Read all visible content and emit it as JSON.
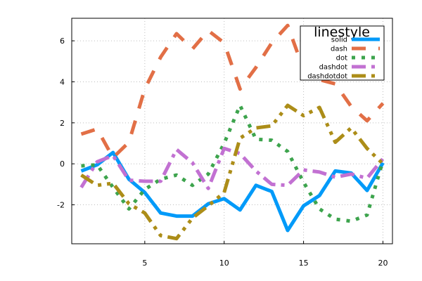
{
  "chart_data": {
    "type": "line",
    "title": "",
    "xlabel": "",
    "ylabel": "",
    "xlim": [
      0.4,
      20.6
    ],
    "ylim": [
      -3.9,
      7.1
    ],
    "xticks": [
      5,
      10,
      15,
      20
    ],
    "yticks": [
      -2,
      0,
      2,
      4,
      6
    ],
    "xtick_labels": [
      "5",
      "10",
      "15",
      "20"
    ],
    "ytick_labels": [
      "-2",
      "0",
      "2",
      "4",
      "6"
    ],
    "grid": true,
    "legend": {
      "title": "linestyle",
      "position": "top-right"
    },
    "x": [
      1,
      2,
      3,
      4,
      5,
      6,
      7,
      8,
      9,
      10,
      11,
      12,
      13,
      14,
      15,
      16,
      17,
      18,
      19,
      20
    ],
    "series": [
      {
        "name": "solid",
        "style": "solid",
        "color": "#009af9",
        "values": [
          -0.35,
          -0.05,
          0.55,
          -0.75,
          -1.4,
          -2.4,
          -2.55,
          -2.55,
          -1.95,
          -1.7,
          -2.25,
          -1.05,
          -1.35,
          -3.25,
          -2.05,
          -1.55,
          -0.35,
          -0.45,
          -1.3,
          0.05
        ]
      },
      {
        "name": "dash",
        "style": "dash",
        "color": "#e26f46",
        "values": [
          1.45,
          1.7,
          0.3,
          1.05,
          3.65,
          5.2,
          6.35,
          5.6,
          6.5,
          5.9,
          3.65,
          4.7,
          5.9,
          6.75,
          4.6,
          4.1,
          3.9,
          2.8,
          2.1,
          2.95
        ]
      },
      {
        "name": "dot",
        "style": "dot",
        "color": "#3da44d",
        "values": [
          -0.1,
          -0.05,
          -1.15,
          -2.2,
          -1.25,
          -0.75,
          -0.55,
          -1.05,
          -0.5,
          1.0,
          2.85,
          1.2,
          1.15,
          0.6,
          -0.9,
          -2.2,
          -2.7,
          -2.8,
          -2.5,
          0.15
        ]
      },
      {
        "name": "dashdot",
        "style": "dashdot",
        "color": "#c271d2",
        "values": [
          -1.15,
          0.1,
          0.4,
          -0.8,
          -0.85,
          -0.85,
          0.7,
          0.05,
          -1.2,
          0.75,
          0.5,
          -0.35,
          -1.0,
          -1.05,
          -0.3,
          -0.4,
          -0.65,
          -0.5,
          -0.7,
          0.25
        ]
      },
      {
        "name": "dashdotdot",
        "style": "dashdotdot",
        "color": "#ac8d18",
        "values": [
          -0.55,
          -1.05,
          -0.95,
          -1.95,
          -2.4,
          -3.5,
          -3.65,
          -2.65,
          -2.05,
          -1.4,
          1.25,
          1.75,
          1.85,
          2.85,
          2.35,
          2.75,
          1.05,
          1.75,
          0.75,
          0.0
        ]
      }
    ]
  }
}
